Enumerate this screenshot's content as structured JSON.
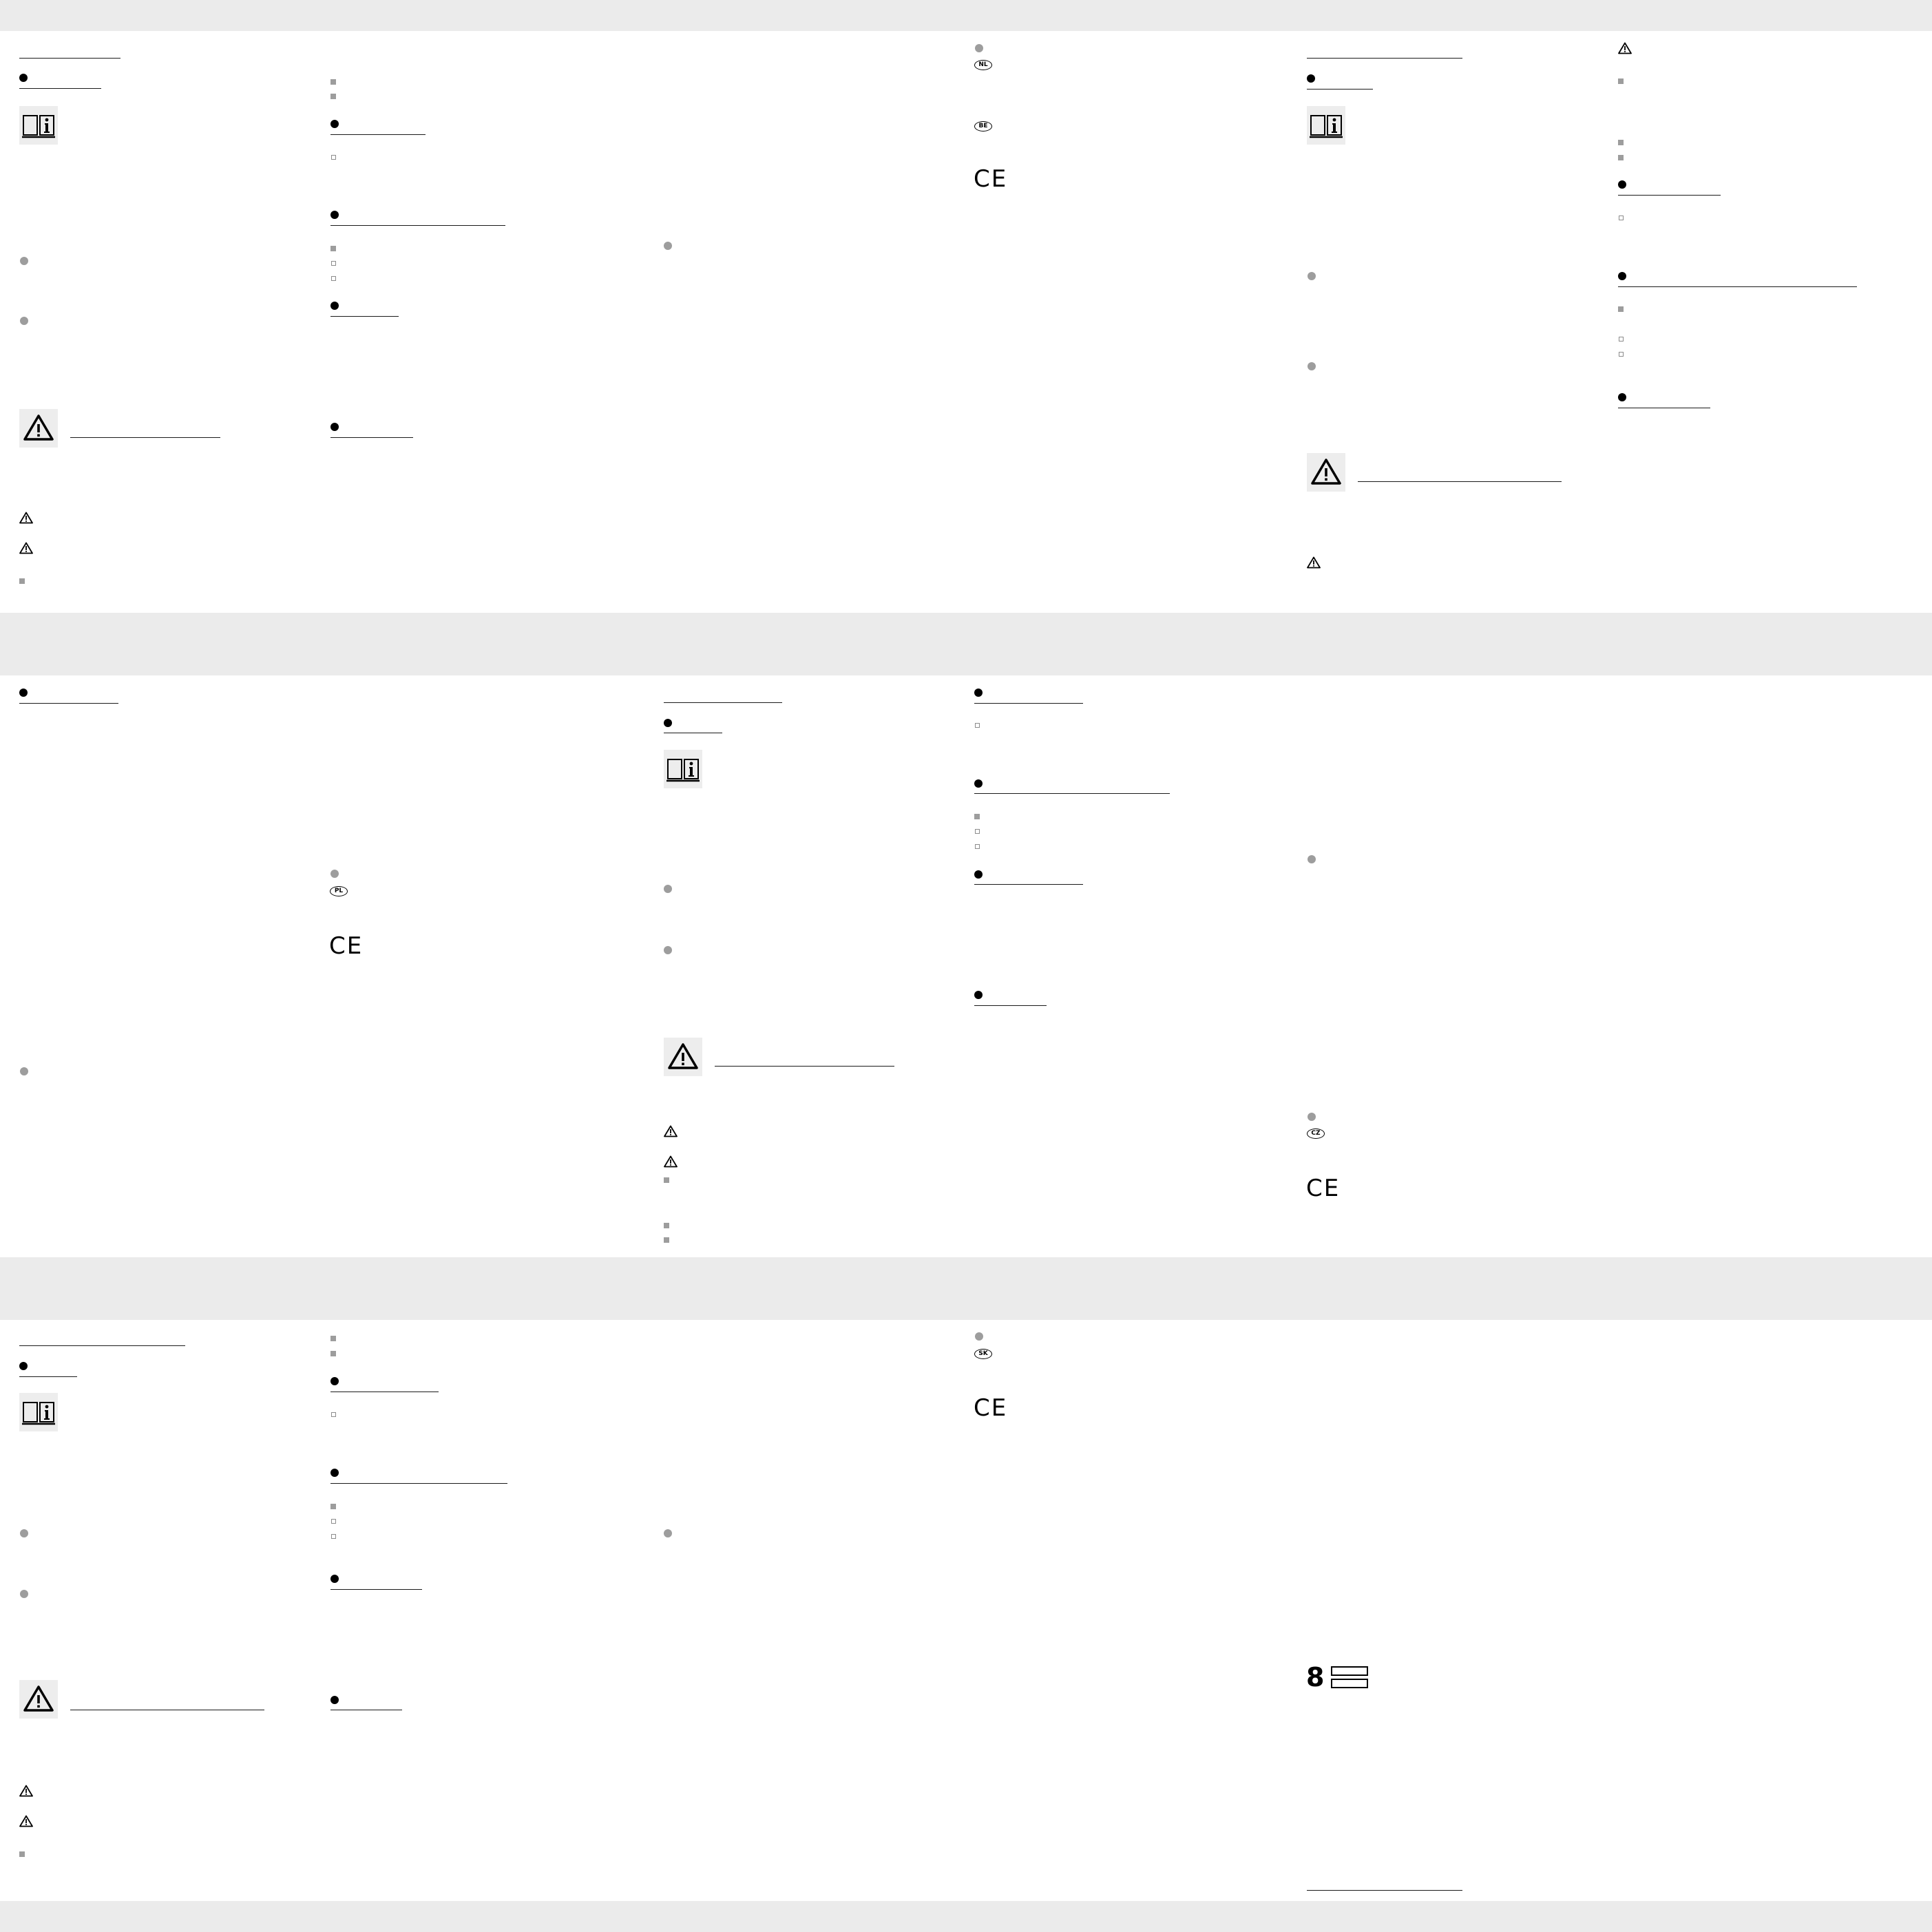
{
  "country_badges": {
    "nl": "NL",
    "be": "BE",
    "pl": "PL",
    "cz": "CZ",
    "sk": "SK"
  },
  "ce_mark": "CE",
  "page_number": "8",
  "icons": {
    "manual": "manual-info-icon",
    "warning": "warning-triangle-icon",
    "bullet": "bullet-dot-icon"
  },
  "colors": {
    "band": "#ebebeb",
    "icon_bg": "#ededed",
    "gray_marker": "#9d9d9d",
    "rule": "#1a1a1a"
  }
}
